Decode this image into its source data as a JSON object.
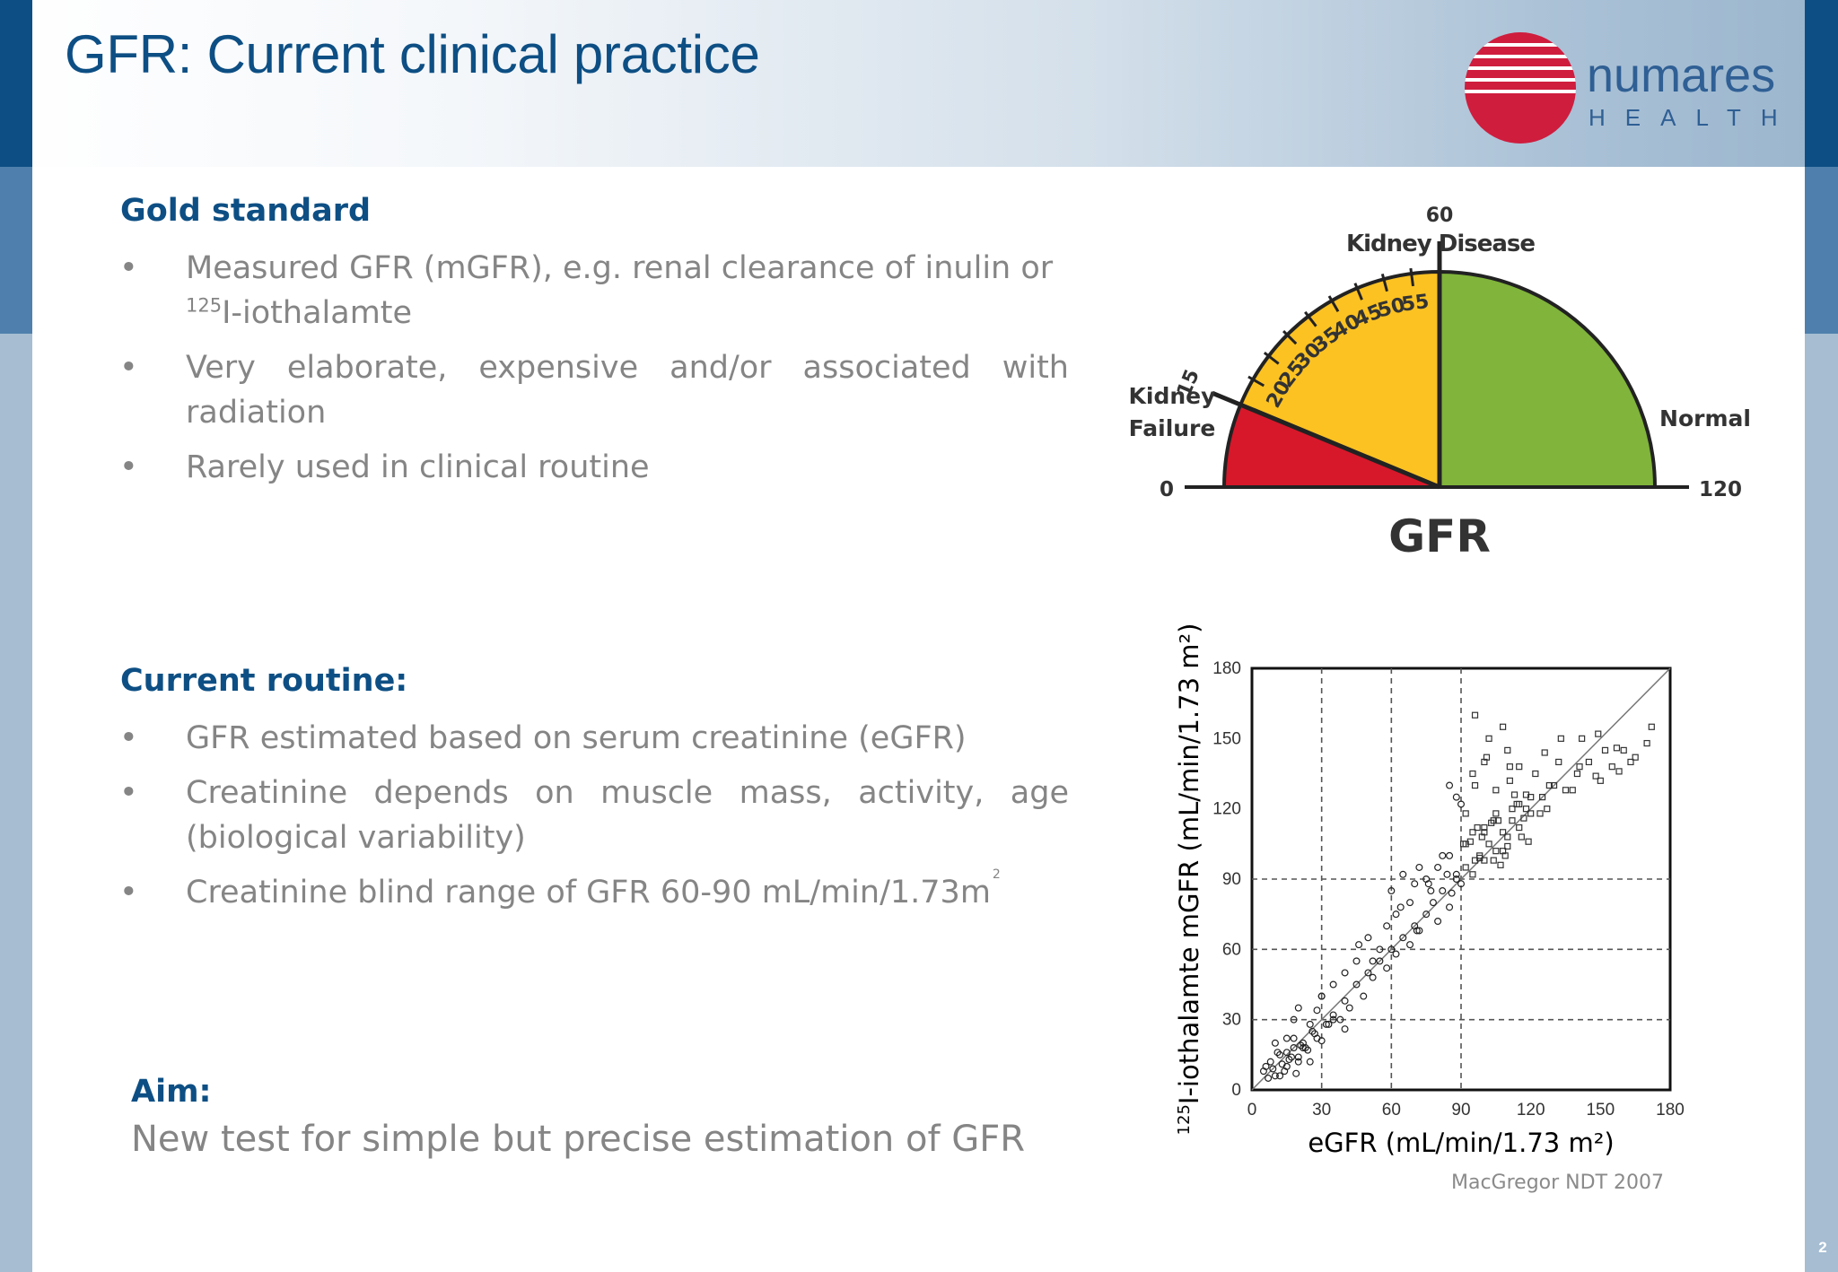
{
  "header": {
    "title": "GFR: Current clinical practice",
    "logo": {
      "name_main": "numares",
      "name_sub": "HEALTH",
      "mark_color": "#cf1d3e",
      "text_color": "#2f5f94"
    }
  },
  "gold_standard": {
    "heading": "Gold standard",
    "bullets": [
      {
        "text": "Measured GFR (mGFR), e.g. renal clearance of inulin or",
        "sup": "125",
        "cont": "I-iothalamte"
      },
      {
        "text": "Very elaborate, expensive and/or associated with radiation"
      },
      {
        "text": "Rarely used in clinical routine"
      }
    ]
  },
  "current_routine": {
    "heading": "Current routine:",
    "bullets": [
      {
        "text": "GFR estimated based on serum creatinine (eGFR)"
      },
      {
        "text": "Creatinine depends on muscle mass, activity, age (biological variability)"
      },
      {
        "text": "Creatinine blind range of GFR 60-90 mL/min/1.73m",
        "sup": "2"
      }
    ]
  },
  "aim": {
    "heading": "Aim:",
    "text": "New test for simple but precise estimation of GFR"
  },
  "bullet_symbol": "•",
  "gauge": {
    "title": "Kidney Disease",
    "label_failure_1": "Kidney",
    "label_failure_2": "Failure",
    "label_normal": "Normal",
    "min_label": "0",
    "max_label": "120",
    "center_label": "GFR",
    "range": [
      0,
      120
    ],
    "zones": [
      {
        "name": "Kidney Failure",
        "from": 0,
        "to": 15,
        "color": "#d7182a"
      },
      {
        "name": "Kidney Disease",
        "from": 15,
        "to": 60,
        "color": "#fcc222"
      },
      {
        "name": "Normal",
        "from": 60,
        "to": 120,
        "color": "#80b43b"
      }
    ],
    "ticks": [
      "15",
      "20",
      "25",
      "30",
      "35",
      "40",
      "45",
      "50",
      "55",
      "60"
    ]
  },
  "chart_data": {
    "type": "scatter",
    "title": "",
    "xlabel": "eGFR (mL/min/1.73 m²)",
    "ylabel_sup": "125",
    "ylabel": "I-iothalamte mGFR (mL/min/1.73 m²)",
    "xlim": [
      0,
      180
    ],
    "ylim": [
      0,
      180
    ],
    "xticks": [
      "0",
      "30",
      "60",
      "90",
      "120",
      "150",
      "180"
    ],
    "yticks": [
      "0",
      "30",
      "60",
      "90",
      "120",
      "150",
      "180"
    ],
    "reference_lines": {
      "x": [
        30,
        60,
        90
      ],
      "y": [
        30,
        60,
        90
      ]
    },
    "identity_line": true,
    "grid": false,
    "series": [
      {
        "values_x": [
          5,
          8,
          10,
          12,
          15,
          18,
          20,
          22,
          25,
          28,
          7,
          9,
          11,
          13,
          16,
          19,
          21,
          24,
          27,
          30,
          6,
          14,
          17,
          23,
          26,
          10,
          12,
          15,
          18,
          20,
          32,
          35,
          38,
          40,
          42,
          45,
          48,
          50,
          52,
          55,
          58,
          60,
          62,
          65,
          68,
          70,
          72,
          75,
          78,
          80,
          82,
          85,
          88,
          90,
          92,
          95,
          98,
          100,
          102,
          105,
          108,
          110,
          112,
          115,
          118,
          120,
          125,
          130,
          135,
          140,
          145,
          150,
          155,
          160,
          165,
          170,
          75,
          80,
          85,
          88,
          92,
          96,
          100,
          104,
          108,
          112,
          116,
          120,
          124,
          128,
          85,
          90,
          95,
          100,
          105,
          110,
          115,
          60,
          65,
          70,
          55,
          50,
          45,
          40,
          35,
          30,
          95,
          100,
          105,
          110,
          115,
          62,
          68,
          72,
          76,
          82,
          86,
          94,
          98,
          103,
          107,
          113,
          117,
          122,
          127,
          132,
          138,
          142,
          148,
          152,
          158,
          88,
          92,
          96,
          99,
          101,
          106,
          109,
          111,
          114,
          119,
          96,
          102,
          108,
          46,
          52,
          58,
          64,
          71,
          77,
          84,
          91,
          97,
          104,
          111,
          118,
          126,
          133,
          141,
          149,
          157,
          163,
          172,
          20,
          25,
          30,
          35,
          40,
          15,
          18,
          22,
          28,
          33
        ],
        "values_y": [
          8,
          12,
          6,
          15,
          10,
          18,
          14,
          20,
          12,
          22,
          5,
          9,
          16,
          11,
          13,
          7,
          19,
          17,
          24,
          21,
          10,
          8,
          14,
          18,
          25,
          20,
          6,
          16,
          22,
          12,
          28,
          32,
          30,
          38,
          35,
          45,
          40,
          50,
          48,
          55,
          52,
          60,
          58,
          65,
          62,
          70,
          68,
          75,
          80,
          72,
          85,
          78,
          90,
          88,
          95,
          92,
          100,
          98,
          105,
          102,
          110,
          108,
          115,
          112,
          120,
          118,
          125,
          130,
          128,
          135,
          140,
          132,
          138,
          145,
          142,
          148,
          90,
          95,
          100,
          92,
          105,
          98,
          110,
          115,
          102,
          120,
          108,
          125,
          118,
          130,
          130,
          122,
          135,
          140,
          128,
          145,
          138,
          85,
          92,
          88,
          60,
          65,
          55,
          50,
          45,
          40,
          110,
          112,
          118,
          104,
          122,
          75,
          80,
          95,
          88,
          100,
          84,
          106,
          99,
          114,
          96,
          126,
          116,
          135,
          120,
          140,
          128,
          150,
          134,
          145,
          136,
          125,
          118,
          130,
          108,
          142,
          115,
          100,
          138,
          122,
          106,
          160,
          150,
          155,
          62,
          55,
          70,
          78,
          68,
          85,
          92,
          105,
          112,
          98,
          132,
          126,
          144,
          150,
          138,
          152,
          146,
          140,
          155,
          35,
          28,
          40,
          30,
          26,
          22,
          30,
          18,
          34,
          28
        ]
      }
    ]
  },
  "citation": "MacGregor NDT 2007"
}
